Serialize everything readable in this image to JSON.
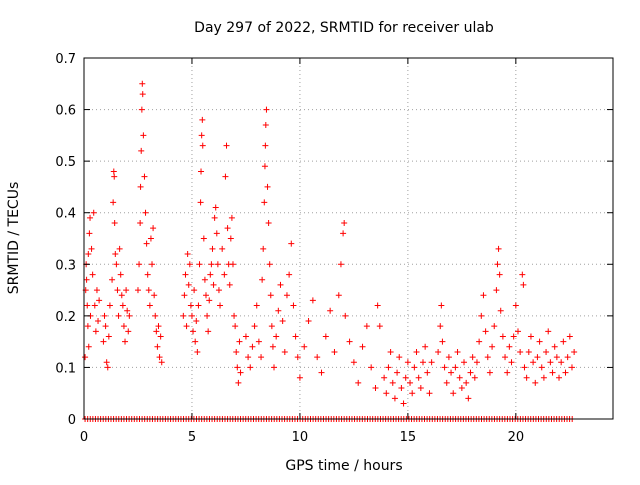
{
  "chart_data": {
    "type": "scatter",
    "title": "Day 297 of 2022, SRMTID for receiver ulab",
    "xlabel": "GPS time / hours",
    "ylabel": "SRMTID / TECUs",
    "xlim": [
      0,
      24.5
    ],
    "ylim": [
      0,
      0.7
    ],
    "xticks": [
      0,
      5,
      10,
      15,
      20
    ],
    "yticks": [
      0,
      0.1,
      0.2,
      0.3,
      0.4,
      0.5,
      0.6,
      0.7
    ],
    "grid": true,
    "marker": "plus",
    "color": "#ff0000",
    "series": [
      {
        "name": "SRMTID",
        "points": [
          [
            0.05,
            0.12
          ],
          [
            0.08,
            0.25
          ],
          [
            0.1,
            0.3
          ],
          [
            0.12,
            0.27
          ],
          [
            0.15,
            0.22
          ],
          [
            0.18,
            0.18
          ],
          [
            0.2,
            0.32
          ],
          [
            0.22,
            0.14
          ],
          [
            0.25,
            0.36
          ],
          [
            0.28,
            0.39
          ],
          [
            0.3,
            0.2
          ],
          [
            0.35,
            0.33
          ],
          [
            0.4,
            0.28
          ],
          [
            0.45,
            0.4
          ],
          [
            0.5,
            0.22
          ],
          [
            0.55,
            0.17
          ],
          [
            0.6,
            0.25
          ],
          [
            0.65,
            0.19
          ],
          [
            0.7,
            0.23
          ],
          [
            0.9,
            0.15
          ],
          [
            0.95,
            0.2
          ],
          [
            1.0,
            0.18
          ],
          [
            1.05,
            0.11
          ],
          [
            1.1,
            0.1
          ],
          [
            1.15,
            0.16
          ],
          [
            1.2,
            0.22
          ],
          [
            1.3,
            0.27
          ],
          [
            1.35,
            0.42
          ],
          [
            1.38,
            0.48
          ],
          [
            1.4,
            0.47
          ],
          [
            1.42,
            0.38
          ],
          [
            1.45,
            0.32
          ],
          [
            1.5,
            0.3
          ],
          [
            1.55,
            0.25
          ],
          [
            1.6,
            0.2
          ],
          [
            1.65,
            0.33
          ],
          [
            1.7,
            0.28
          ],
          [
            1.75,
            0.24
          ],
          [
            1.8,
            0.22
          ],
          [
            1.85,
            0.18
          ],
          [
            1.9,
            0.15
          ],
          [
            1.95,
            0.25
          ],
          [
            2.0,
            0.21
          ],
          [
            2.05,
            0.17
          ],
          [
            2.1,
            0.2
          ],
          [
            2.5,
            0.25
          ],
          [
            2.55,
            0.3
          ],
          [
            2.6,
            0.38
          ],
          [
            2.62,
            0.45
          ],
          [
            2.65,
            0.52
          ],
          [
            2.68,
            0.6
          ],
          [
            2.7,
            0.65
          ],
          [
            2.72,
            0.63
          ],
          [
            2.75,
            0.55
          ],
          [
            2.8,
            0.47
          ],
          [
            2.85,
            0.4
          ],
          [
            2.9,
            0.34
          ],
          [
            2.95,
            0.28
          ],
          [
            3.0,
            0.25
          ],
          [
            3.05,
            0.22
          ],
          [
            3.1,
            0.35
          ],
          [
            3.15,
            0.3
          ],
          [
            3.2,
            0.37
          ],
          [
            3.25,
            0.24
          ],
          [
            3.3,
            0.2
          ],
          [
            3.35,
            0.17
          ],
          [
            3.4,
            0.14
          ],
          [
            3.45,
            0.18
          ],
          [
            3.5,
            0.12
          ],
          [
            3.55,
            0.16
          ],
          [
            3.6,
            0.11
          ],
          [
            4.6,
            0.2
          ],
          [
            4.65,
            0.24
          ],
          [
            4.7,
            0.28
          ],
          [
            4.75,
            0.18
          ],
          [
            4.8,
            0.32
          ],
          [
            4.85,
            0.26
          ],
          [
            4.9,
            0.3
          ],
          [
            4.95,
            0.22
          ],
          [
            5.0,
            0.2
          ],
          [
            5.05,
            0.17
          ],
          [
            5.1,
            0.25
          ],
          [
            5.15,
            0.15
          ],
          [
            5.2,
            0.19
          ],
          [
            5.25,
            0.13
          ],
          [
            5.3,
            0.22
          ],
          [
            5.35,
            0.3
          ],
          [
            5.4,
            0.42
          ],
          [
            5.42,
            0.48
          ],
          [
            5.45,
            0.55
          ],
          [
            5.48,
            0.58
          ],
          [
            5.5,
            0.53
          ],
          [
            5.55,
            0.35
          ],
          [
            5.6,
            0.27
          ],
          [
            5.65,
            0.24
          ],
          [
            5.7,
            0.2
          ],
          [
            5.75,
            0.17
          ],
          [
            5.8,
            0.23
          ],
          [
            5.85,
            0.28
          ],
          [
            5.9,
            0.3
          ],
          [
            5.95,
            0.33
          ],
          [
            6.0,
            0.26
          ],
          [
            6.05,
            0.39
          ],
          [
            6.1,
            0.41
          ],
          [
            6.15,
            0.36
          ],
          [
            6.2,
            0.3
          ],
          [
            6.25,
            0.25
          ],
          [
            6.3,
            0.22
          ],
          [
            6.4,
            0.33
          ],
          [
            6.5,
            0.28
          ],
          [
            6.55,
            0.47
          ],
          [
            6.6,
            0.53
          ],
          [
            6.65,
            0.37
          ],
          [
            6.7,
            0.3
          ],
          [
            6.75,
            0.26
          ],
          [
            6.8,
            0.35
          ],
          [
            6.85,
            0.39
          ],
          [
            6.9,
            0.3
          ],
          [
            6.95,
            0.2
          ],
          [
            7.0,
            0.18
          ],
          [
            7.05,
            0.13
          ],
          [
            7.1,
            0.1
          ],
          [
            7.15,
            0.07
          ],
          [
            7.2,
            0.15
          ],
          [
            7.25,
            0.09
          ],
          [
            7.5,
            0.16
          ],
          [
            7.6,
            0.12
          ],
          [
            7.7,
            0.1
          ],
          [
            7.8,
            0.14
          ],
          [
            7.9,
            0.18
          ],
          [
            8.0,
            0.22
          ],
          [
            8.1,
            0.15
          ],
          [
            8.2,
            0.12
          ],
          [
            8.25,
            0.27
          ],
          [
            8.3,
            0.33
          ],
          [
            8.35,
            0.42
          ],
          [
            8.38,
            0.49
          ],
          [
            8.4,
            0.53
          ],
          [
            8.42,
            0.57
          ],
          [
            8.45,
            0.6
          ],
          [
            8.5,
            0.45
          ],
          [
            8.55,
            0.38
          ],
          [
            8.6,
            0.3
          ],
          [
            8.65,
            0.24
          ],
          [
            8.7,
            0.18
          ],
          [
            8.75,
            0.14
          ],
          [
            8.8,
            0.1
          ],
          [
            8.9,
            0.16
          ],
          [
            9.0,
            0.21
          ],
          [
            9.1,
            0.26
          ],
          [
            9.2,
            0.19
          ],
          [
            9.3,
            0.13
          ],
          [
            9.4,
            0.24
          ],
          [
            9.5,
            0.28
          ],
          [
            9.6,
            0.34
          ],
          [
            9.7,
            0.22
          ],
          [
            9.8,
            0.16
          ],
          [
            9.9,
            0.12
          ],
          [
            10.0,
            0.08
          ],
          [
            10.2,
            0.14
          ],
          [
            10.4,
            0.19
          ],
          [
            10.6,
            0.23
          ],
          [
            10.8,
            0.12
          ],
          [
            11.0,
            0.09
          ],
          [
            11.2,
            0.16
          ],
          [
            11.4,
            0.21
          ],
          [
            11.6,
            0.13
          ],
          [
            11.8,
            0.24
          ],
          [
            11.9,
            0.3
          ],
          [
            12.0,
            0.36
          ],
          [
            12.05,
            0.38
          ],
          [
            12.1,
            0.2
          ],
          [
            12.3,
            0.15
          ],
          [
            12.5,
            0.11
          ],
          [
            12.7,
            0.07
          ],
          [
            12.9,
            0.14
          ],
          [
            13.1,
            0.18
          ],
          [
            13.3,
            0.1
          ],
          [
            13.5,
            0.06
          ],
          [
            13.6,
            0.22
          ],
          [
            13.7,
            0.18
          ],
          [
            13.9,
            0.08
          ],
          [
            14.0,
            0.05
          ],
          [
            14.1,
            0.1
          ],
          [
            14.2,
            0.13
          ],
          [
            14.3,
            0.07
          ],
          [
            14.4,
            0.04
          ],
          [
            14.5,
            0.09
          ],
          [
            14.6,
            0.12
          ],
          [
            14.7,
            0.06
          ],
          [
            14.8,
            0.03
          ],
          [
            14.9,
            0.08
          ],
          [
            15.0,
            0.11
          ],
          [
            15.1,
            0.07
          ],
          [
            15.2,
            0.05
          ],
          [
            15.3,
            0.1
          ],
          [
            15.4,
            0.13
          ],
          [
            15.5,
            0.08
          ],
          [
            15.6,
            0.06
          ],
          [
            15.7,
            0.11
          ],
          [
            15.8,
            0.14
          ],
          [
            15.9,
            0.09
          ],
          [
            16.0,
            0.05
          ],
          [
            16.1,
            0.11
          ],
          [
            16.4,
            0.13
          ],
          [
            16.5,
            0.18
          ],
          [
            16.55,
            0.22
          ],
          [
            16.6,
            0.15
          ],
          [
            16.7,
            0.1
          ],
          [
            16.8,
            0.07
          ],
          [
            16.9,
            0.12
          ],
          [
            17.0,
            0.09
          ],
          [
            17.1,
            0.05
          ],
          [
            17.2,
            0.1
          ],
          [
            17.3,
            0.13
          ],
          [
            17.4,
            0.08
          ],
          [
            17.5,
            0.06
          ],
          [
            17.6,
            0.11
          ],
          [
            17.7,
            0.07
          ],
          [
            17.8,
            0.04
          ],
          [
            17.9,
            0.09
          ],
          [
            18.0,
            0.12
          ],
          [
            18.1,
            0.08
          ],
          [
            18.2,
            0.11
          ],
          [
            18.3,
            0.15
          ],
          [
            18.4,
            0.2
          ],
          [
            18.5,
            0.24
          ],
          [
            18.6,
            0.17
          ],
          [
            18.7,
            0.12
          ],
          [
            18.8,
            0.09
          ],
          [
            18.9,
            0.14
          ],
          [
            19.0,
            0.18
          ],
          [
            19.1,
            0.25
          ],
          [
            19.15,
            0.3
          ],
          [
            19.2,
            0.33
          ],
          [
            19.25,
            0.28
          ],
          [
            19.3,
            0.21
          ],
          [
            19.4,
            0.16
          ],
          [
            19.5,
            0.12
          ],
          [
            19.6,
            0.09
          ],
          [
            19.7,
            0.14
          ],
          [
            19.8,
            0.11
          ],
          [
            19.9,
            0.16
          ],
          [
            20.0,
            0.22
          ],
          [
            20.1,
            0.17
          ],
          [
            20.2,
            0.13
          ],
          [
            20.3,
            0.28
          ],
          [
            20.35,
            0.26
          ],
          [
            20.4,
            0.1
          ],
          [
            20.5,
            0.08
          ],
          [
            20.6,
            0.13
          ],
          [
            20.7,
            0.16
          ],
          [
            20.8,
            0.11
          ],
          [
            20.9,
            0.07
          ],
          [
            21.0,
            0.12
          ],
          [
            21.1,
            0.15
          ],
          [
            21.2,
            0.1
          ],
          [
            21.3,
            0.08
          ],
          [
            21.4,
            0.13
          ],
          [
            21.5,
            0.17
          ],
          [
            21.6,
            0.11
          ],
          [
            21.7,
            0.09
          ],
          [
            21.8,
            0.14
          ],
          [
            21.9,
            0.12
          ],
          [
            22.0,
            0.08
          ],
          [
            22.1,
            0.11
          ],
          [
            22.2,
            0.15
          ],
          [
            22.3,
            0.09
          ],
          [
            22.4,
            0.12
          ],
          [
            22.5,
            0.16
          ],
          [
            22.6,
            0.1
          ],
          [
            22.7,
            0.13
          ]
        ]
      }
    ]
  }
}
